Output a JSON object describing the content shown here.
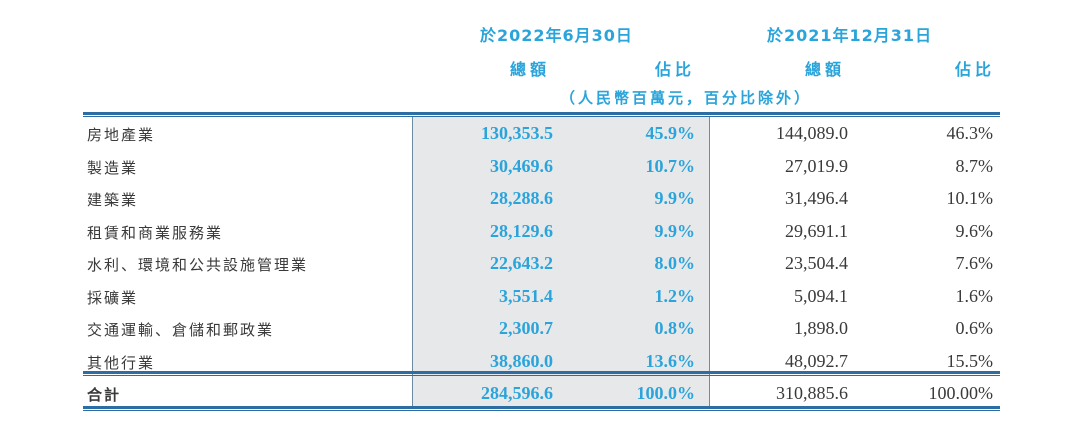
{
  "header": {
    "period1": "於2022年6月30日",
    "period2": "於2021年12月31日",
    "amount_label": "總額",
    "share_label": "佔比",
    "unit_note": "（人民幣百萬元，百分比除外）"
  },
  "rows": [
    {
      "label": "房地產業",
      "amount_2022": "130,353.5",
      "share_2022": "45.9%",
      "amount_2021": "144,089.0",
      "share_2021": "46.3%"
    },
    {
      "label": "製造業",
      "amount_2022": "30,469.6",
      "share_2022": "10.7%",
      "amount_2021": "27,019.9",
      "share_2021": "8.7%"
    },
    {
      "label": "建築業",
      "amount_2022": "28,288.6",
      "share_2022": "9.9%",
      "amount_2021": "31,496.4",
      "share_2021": "10.1%"
    },
    {
      "label": "租賃和商業服務業",
      "amount_2022": "28,129.6",
      "share_2022": "9.9%",
      "amount_2021": "29,691.1",
      "share_2021": "9.6%"
    },
    {
      "label": "水利、環境和公共設施管理業",
      "amount_2022": "22,643.2",
      "share_2022": "8.0%",
      "amount_2021": "23,504.4",
      "share_2021": "7.6%"
    },
    {
      "label": "採礦業",
      "amount_2022": "3,551.4",
      "share_2022": "1.2%",
      "amount_2021": "5,094.1",
      "share_2021": "1.6%"
    },
    {
      "label": "交通運輸、倉儲和郵政業",
      "amount_2022": "2,300.7",
      "share_2022": "0.8%",
      "amount_2021": "1,898.0",
      "share_2021": "0.6%"
    },
    {
      "label": "其他行業",
      "amount_2022": "38,860.0",
      "share_2022": "13.6%",
      "amount_2021": "48,092.7",
      "share_2021": "15.5%"
    }
  ],
  "total": {
    "label": "合計",
    "amount_2022": "284,596.6",
    "share_2022": "100.0%",
    "amount_2021": "310,885.6",
    "share_2021": "100.00%"
  },
  "colors": {
    "accent": "#2aa4da",
    "rule": "#2c6da3",
    "shade": "#e7e8ea"
  }
}
